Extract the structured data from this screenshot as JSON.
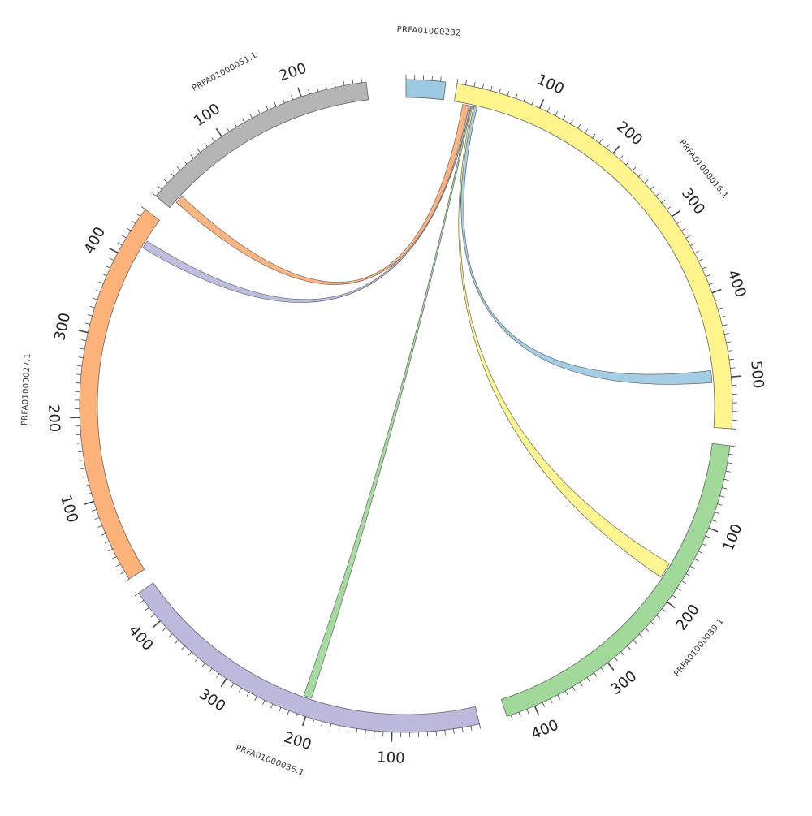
{
  "chart_data": {
    "type": "chord",
    "tick_interval": 10,
    "major_tick_interval": 100,
    "segments": [
      {
        "id": "s232",
        "name": "PRFA01000232",
        "length": 46,
        "color": "#9ecae1",
        "start_angle": 0,
        "end_angle": 7,
        "tick_labels": []
      },
      {
        "id": "s16",
        "name": "PRFA01000016.1",
        "length": 560,
        "color": "#fff58c",
        "start_angle": 9,
        "end_angle": 94,
        "tick_labels": [
          "100",
          "200",
          "300",
          "400",
          "500"
        ]
      },
      {
        "id": "s39",
        "name": "PRFA01000039.1",
        "length": 435,
        "color": "#a1d99b",
        "start_angle": 97,
        "end_angle": 162,
        "tick_labels": [
          "100",
          "200",
          "300",
          "400"
        ]
      },
      {
        "id": "s36",
        "name": "PRFA01000036.1",
        "length": 440,
        "color": "#bcb9dc",
        "start_angle": 167,
        "end_angle": 235,
        "tick_labels": [
          "100",
          "200",
          "300",
          "400"
        ]
      },
      {
        "id": "s27",
        "name": "PRFA01000027.1",
        "length": 460,
        "color": "#fdb27a",
        "start_angle": 238,
        "end_angle": 307,
        "tick_labels": [
          "100",
          "200",
          "300",
          "400"
        ]
      },
      {
        "id": "s51",
        "name": "PRFA01000051.1",
        "length": 275,
        "color": "#b5b5b5",
        "start_angle": 310,
        "end_angle": 353,
        "tick_labels": [
          "100",
          "200"
        ]
      }
    ],
    "links": [
      {
        "source": "s232",
        "source_range": [
          83,
          88
        ],
        "target": "s16",
        "target_range": [
          490,
          505
        ],
        "color": "#9ecae1"
      },
      {
        "source": "s232",
        "source_range": [
          82,
          84
        ],
        "target": "s39",
        "target_range": [
          160,
          180
        ],
        "color": "#fff58c"
      },
      {
        "source": "s232",
        "source_range": [
          79,
          81
        ],
        "target": "s36",
        "target_range": [
          200,
          210
        ],
        "color": "#a1d99b"
      },
      {
        "source": "s232",
        "source_range": [
          75,
          80
        ],
        "target": "s27",
        "target_range": [
          420,
          430
        ],
        "color": "#bcb9dc"
      },
      {
        "source": "s232",
        "source_range": [
          70,
          78
        ],
        "target": "s51",
        "target_range": [
          10,
          20
        ],
        "color": "#fdb27a"
      }
    ]
  }
}
